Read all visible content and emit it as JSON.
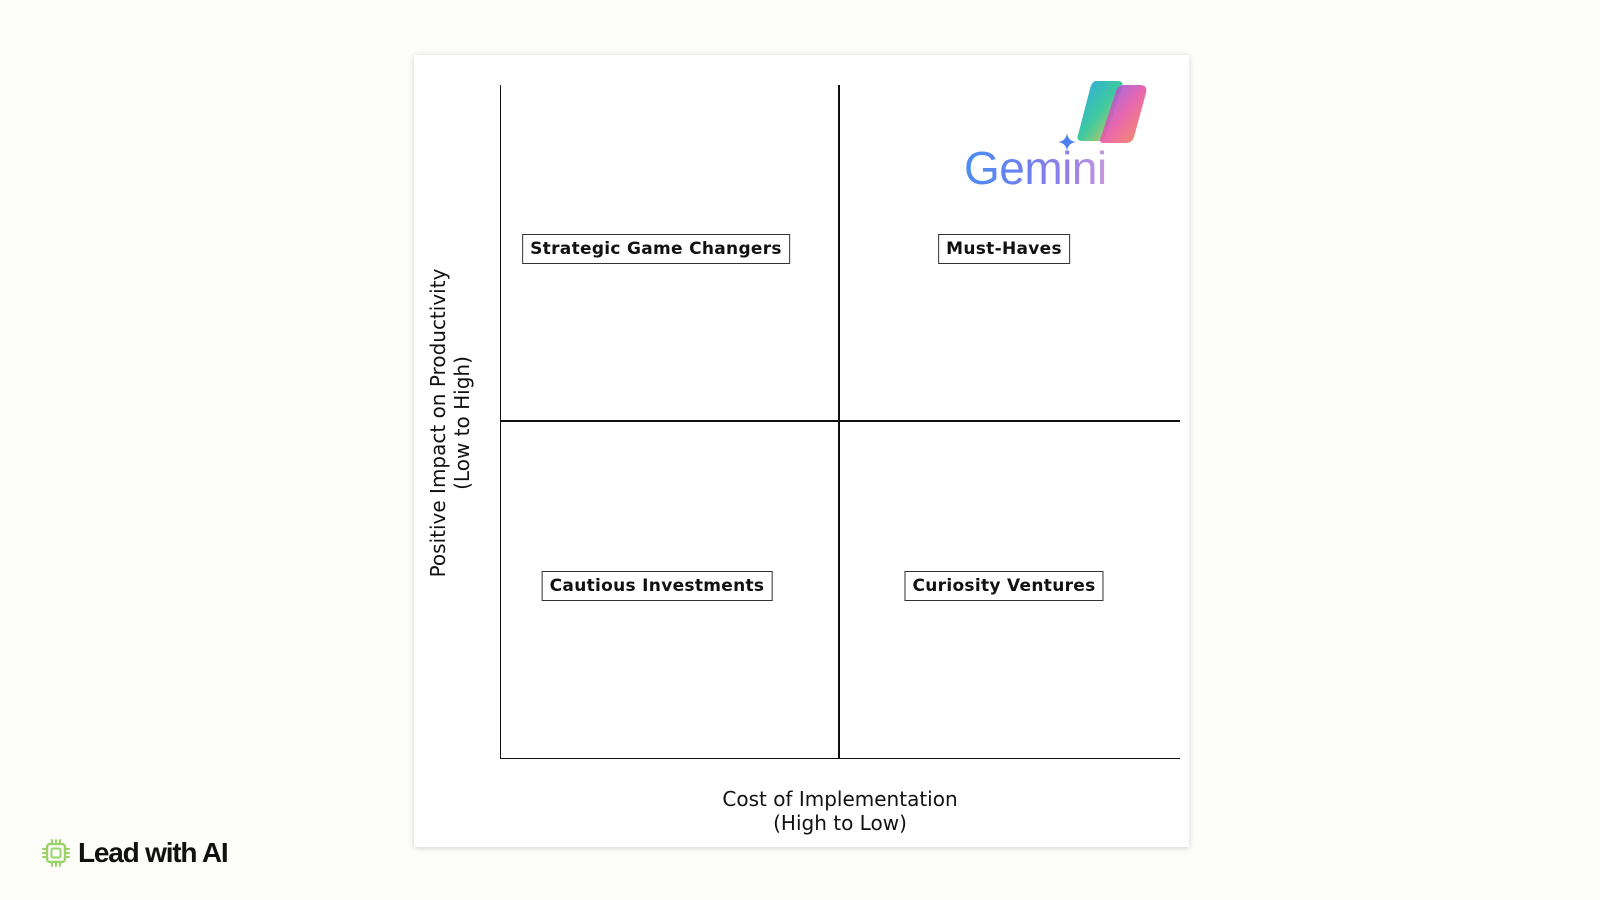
{
  "matrix": {
    "quadrants": {
      "top_left": "Strategic Game Changers",
      "top_right": "Must-Haves",
      "bottom_left": "Cautious Investments",
      "bottom_right": "Curiosity Ventures"
    },
    "x_axis": {
      "line1": "Cost of Implementation",
      "line2": "(High to Low)"
    },
    "y_axis": {
      "line1": "Positive Impact on Productivity",
      "line2": "(Low to High)"
    }
  },
  "logo": {
    "text": "Gemini",
    "icons": [
      "copilot-icon",
      "gemini-sparkle-icon"
    ]
  },
  "brand": {
    "text": "Lead with AI",
    "icon": "chip-icon",
    "icon_color": "#9bd36a"
  }
}
